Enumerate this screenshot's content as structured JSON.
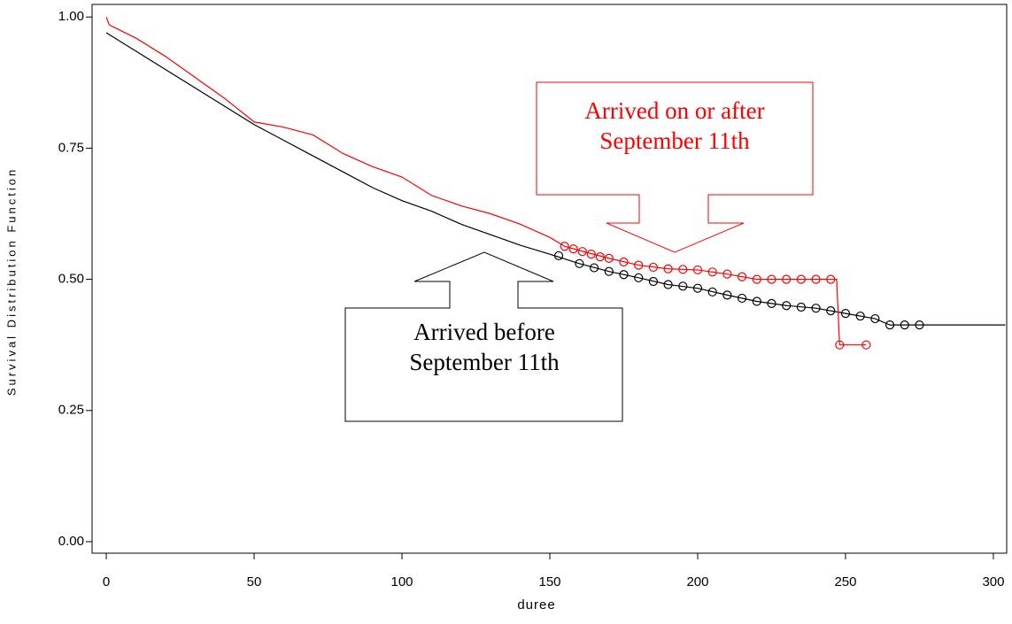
{
  "chart_data": {
    "type": "line",
    "xlabel": "duree",
    "ylabel": "Survival Distribution Function",
    "xlim": [
      -4.8,
      304.5
    ],
    "ylim": [
      -0.022,
      1.024
    ],
    "xticks": [
      0,
      50,
      100,
      150,
      200,
      250,
      300
    ],
    "yticks": [
      {
        "value": 0,
        "label": "0.00"
      },
      {
        "value": 0.25,
        "label": "0.25"
      },
      {
        "value": 0.5,
        "label": "0.50"
      },
      {
        "value": 0.75,
        "label": "0.75"
      },
      {
        "value": 1,
        "label": "1.00"
      }
    ],
    "series": [
      {
        "color": "#000000",
        "x": [
          0,
          10,
          20,
          30,
          40,
          50,
          60,
          70,
          80,
          90,
          100,
          110,
          120,
          130,
          140,
          150,
          160,
          170,
          180,
          190,
          200,
          210,
          220,
          230,
          240,
          250,
          260,
          265,
          275,
          304
        ],
        "values": [
          0.97,
          0.935,
          0.9,
          0.865,
          0.83,
          0.795,
          0.765,
          0.735,
          0.705,
          0.675,
          0.65,
          0.63,
          0.605,
          0.585,
          0.565,
          0.548,
          0.53,
          0.515,
          0.503,
          0.49,
          0.483,
          0.47,
          0.458,
          0.45,
          0.445,
          0.435,
          0.425,
          0.413,
          0.413,
          0.413
        ],
        "censored_x": [
          153,
          160,
          165,
          170,
          175,
          180,
          185,
          190,
          195,
          200,
          205,
          210,
          215,
          220,
          225,
          230,
          235,
          240,
          245,
          250,
          255,
          260,
          265,
          270,
          275
        ],
        "censored_values": [
          0.545,
          0.53,
          0.522,
          0.515,
          0.509,
          0.503,
          0.496,
          0.49,
          0.487,
          0.483,
          0.476,
          0.47,
          0.464,
          0.458,
          0.454,
          0.45,
          0.447,
          0.445,
          0.44,
          0.435,
          0.43,
          0.425,
          0.413,
          0.413,
          0.413
        ]
      },
      {
        "color": "#ff0000",
        "x": [
          0,
          1,
          10,
          20,
          30,
          40,
          50,
          60,
          70,
          80,
          90,
          100,
          110,
          120,
          130,
          140,
          150,
          155,
          160,
          170,
          180,
          190,
          200,
          210,
          220,
          230,
          240,
          247,
          248,
          257
        ],
        "values": [
          1.0,
          0.985,
          0.96,
          0.925,
          0.885,
          0.845,
          0.8,
          0.79,
          0.775,
          0.74,
          0.715,
          0.695,
          0.66,
          0.64,
          0.625,
          0.605,
          0.58,
          0.563,
          0.555,
          0.54,
          0.527,
          0.52,
          0.518,
          0.51,
          0.5,
          0.5,
          0.5,
          0.5,
          0.375,
          0.375
        ],
        "censored_x": [
          155,
          158,
          161,
          164,
          167,
          170,
          175,
          180,
          185,
          190,
          195,
          200,
          205,
          210,
          215,
          220,
          225,
          230,
          235,
          240,
          245,
          248,
          257
        ],
        "censored_values": [
          0.563,
          0.558,
          0.553,
          0.548,
          0.543,
          0.54,
          0.533,
          0.527,
          0.523,
          0.52,
          0.519,
          0.518,
          0.514,
          0.51,
          0.505,
          0.5,
          0.5,
          0.5,
          0.5,
          0.5,
          0.5,
          0.375,
          0.375
        ]
      }
    ],
    "annotations": [
      {
        "lines": [
          "Arrived on or after",
          "September 11th"
        ],
        "color": "#ff0000"
      },
      {
        "lines": [
          "Arrived before",
          "September 11th"
        ],
        "color": "#000000"
      }
    ]
  }
}
